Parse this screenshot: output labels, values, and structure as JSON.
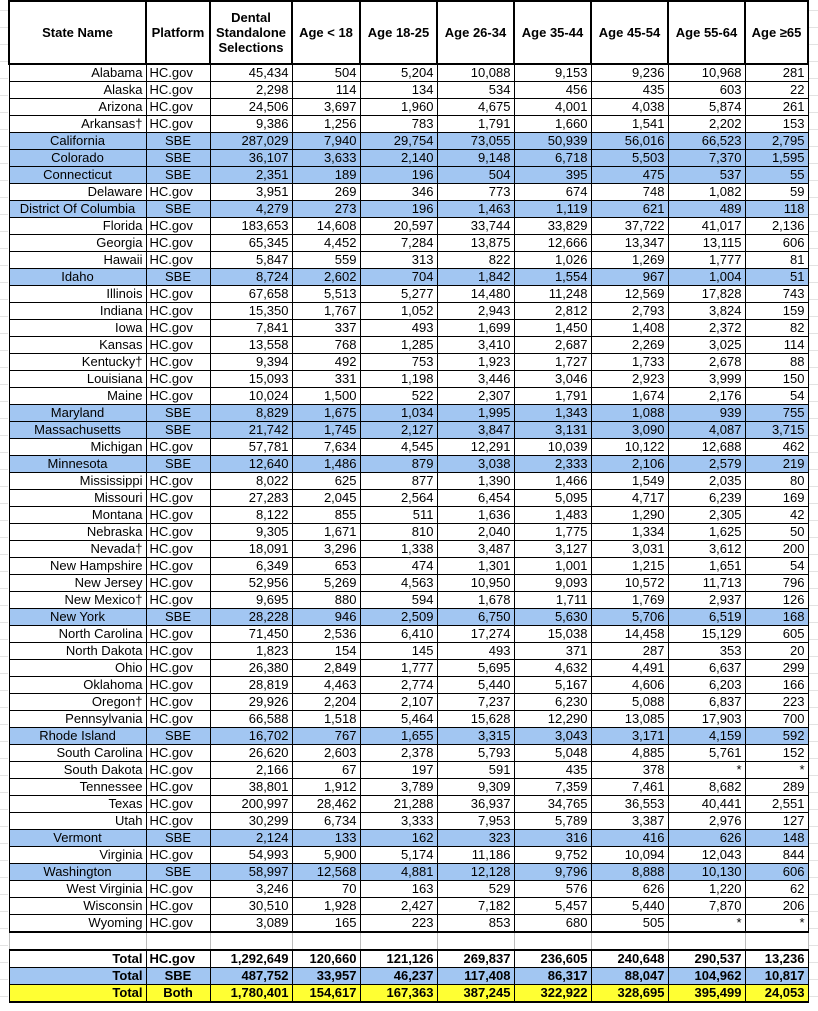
{
  "colors": {
    "sbe_row": "#a2c6f2",
    "total_both_row": "#ffff33"
  },
  "headers": [
    "State Name",
    "Platform",
    "Dental Standalone Selections",
    "Age < 18",
    "Age 18-25",
    "Age 26-34",
    "Age 35-44",
    "Age 45-54",
    "Age 55-64",
    "Age ≥65"
  ],
  "rows": [
    [
      "Alabama",
      "HC.gov",
      "45,434",
      "504",
      "5,204",
      "10,088",
      "9,153",
      "9,236",
      "10,968",
      "281"
    ],
    [
      "Alaska",
      "HC.gov",
      "2,298",
      "114",
      "134",
      "534",
      "456",
      "435",
      "603",
      "22"
    ],
    [
      "Arizona",
      "HC.gov",
      "24,506",
      "3,697",
      "1,960",
      "4,675",
      "4,001",
      "4,038",
      "5,874",
      "261"
    ],
    [
      "Arkansas†",
      "HC.gov",
      "9,386",
      "1,256",
      "783",
      "1,791",
      "1,660",
      "1,541",
      "2,202",
      "153"
    ],
    [
      "California",
      "SBE",
      "287,029",
      "7,940",
      "29,754",
      "73,055",
      "50,939",
      "56,016",
      "66,523",
      "2,795"
    ],
    [
      "Colorado",
      "SBE",
      "36,107",
      "3,633",
      "2,140",
      "9,148",
      "6,718",
      "5,503",
      "7,370",
      "1,595"
    ],
    [
      "Connecticut",
      "SBE",
      "2,351",
      "189",
      "196",
      "504",
      "395",
      "475",
      "537",
      "55"
    ],
    [
      "Delaware",
      "HC.gov",
      "3,951",
      "269",
      "346",
      "773",
      "674",
      "748",
      "1,082",
      "59"
    ],
    [
      "District Of Columbia",
      "SBE",
      "4,279",
      "273",
      "196",
      "1,463",
      "1,119",
      "621",
      "489",
      "118"
    ],
    [
      "Florida",
      "HC.gov",
      "183,653",
      "14,608",
      "20,597",
      "33,744",
      "33,829",
      "37,722",
      "41,017",
      "2,136"
    ],
    [
      "Georgia",
      "HC.gov",
      "65,345",
      "4,452",
      "7,284",
      "13,875",
      "12,666",
      "13,347",
      "13,115",
      "606"
    ],
    [
      "Hawaii",
      "HC.gov",
      "5,847",
      "559",
      "313",
      "822",
      "1,026",
      "1,269",
      "1,777",
      "81"
    ],
    [
      "Idaho",
      "SBE",
      "8,724",
      "2,602",
      "704",
      "1,842",
      "1,554",
      "967",
      "1,004",
      "51"
    ],
    [
      "Illinois",
      "HC.gov",
      "67,658",
      "5,513",
      "5,277",
      "14,480",
      "11,248",
      "12,569",
      "17,828",
      "743"
    ],
    [
      "Indiana",
      "HC.gov",
      "15,350",
      "1,767",
      "1,052",
      "2,943",
      "2,812",
      "2,793",
      "3,824",
      "159"
    ],
    [
      "Iowa",
      "HC.gov",
      "7,841",
      "337",
      "493",
      "1,699",
      "1,450",
      "1,408",
      "2,372",
      "82"
    ],
    [
      "Kansas",
      "HC.gov",
      "13,558",
      "768",
      "1,285",
      "3,410",
      "2,687",
      "2,269",
      "3,025",
      "114"
    ],
    [
      "Kentucky†",
      "HC.gov",
      "9,394",
      "492",
      "753",
      "1,923",
      "1,727",
      "1,733",
      "2,678",
      "88"
    ],
    [
      "Louisiana",
      "HC.gov",
      "15,093",
      "331",
      "1,198",
      "3,446",
      "3,046",
      "2,923",
      "3,999",
      "150"
    ],
    [
      "Maine",
      "HC.gov",
      "10,024",
      "1,500",
      "522",
      "2,307",
      "1,791",
      "1,674",
      "2,176",
      "54"
    ],
    [
      "Maryland",
      "SBE",
      "8,829",
      "1,675",
      "1,034",
      "1,995",
      "1,343",
      "1,088",
      "939",
      "755"
    ],
    [
      "Massachusetts",
      "SBE",
      "21,742",
      "1,745",
      "2,127",
      "3,847",
      "3,131",
      "3,090",
      "4,087",
      "3,715"
    ],
    [
      "Michigan",
      "HC.gov",
      "57,781",
      "7,634",
      "4,545",
      "12,291",
      "10,039",
      "10,122",
      "12,688",
      "462"
    ],
    [
      "Minnesota",
      "SBE",
      "12,640",
      "1,486",
      "879",
      "3,038",
      "2,333",
      "2,106",
      "2,579",
      "219"
    ],
    [
      "Mississippi",
      "HC.gov",
      "8,022",
      "625",
      "877",
      "1,390",
      "1,466",
      "1,549",
      "2,035",
      "80"
    ],
    [
      "Missouri",
      "HC.gov",
      "27,283",
      "2,045",
      "2,564",
      "6,454",
      "5,095",
      "4,717",
      "6,239",
      "169"
    ],
    [
      "Montana",
      "HC.gov",
      "8,122",
      "855",
      "511",
      "1,636",
      "1,483",
      "1,290",
      "2,305",
      "42"
    ],
    [
      "Nebraska",
      "HC.gov",
      "9,305",
      "1,671",
      "810",
      "2,040",
      "1,775",
      "1,334",
      "1,625",
      "50"
    ],
    [
      "Nevada†",
      "HC.gov",
      "18,091",
      "3,296",
      "1,338",
      "3,487",
      "3,127",
      "3,031",
      "3,612",
      "200"
    ],
    [
      "New Hampshire",
      "HC.gov",
      "6,349",
      "653",
      "474",
      "1,301",
      "1,001",
      "1,215",
      "1,651",
      "54"
    ],
    [
      "New Jersey",
      "HC.gov",
      "52,956",
      "5,269",
      "4,563",
      "10,950",
      "9,093",
      "10,572",
      "11,713",
      "796"
    ],
    [
      "New Mexico†",
      "HC.gov",
      "9,695",
      "880",
      "594",
      "1,678",
      "1,711",
      "1,769",
      "2,937",
      "126"
    ],
    [
      "New York",
      "SBE",
      "28,228",
      "946",
      "2,509",
      "6,750",
      "5,630",
      "5,706",
      "6,519",
      "168"
    ],
    [
      "North Carolina",
      "HC.gov",
      "71,450",
      "2,536",
      "6,410",
      "17,274",
      "15,038",
      "14,458",
      "15,129",
      "605"
    ],
    [
      "North Dakota",
      "HC.gov",
      "1,823",
      "154",
      "145",
      "493",
      "371",
      "287",
      "353",
      "20"
    ],
    [
      "Ohio",
      "HC.gov",
      "26,380",
      "2,849",
      "1,777",
      "5,695",
      "4,632",
      "4,491",
      "6,637",
      "299"
    ],
    [
      "Oklahoma",
      "HC.gov",
      "28,819",
      "4,463",
      "2,774",
      "5,440",
      "5,167",
      "4,606",
      "6,203",
      "166"
    ],
    [
      "Oregon†",
      "HC.gov",
      "29,926",
      "2,204",
      "2,107",
      "7,237",
      "6,230",
      "5,088",
      "6,837",
      "223"
    ],
    [
      "Pennsylvania",
      "HC.gov",
      "66,588",
      "1,518",
      "5,464",
      "15,628",
      "12,290",
      "13,085",
      "17,903",
      "700"
    ],
    [
      "Rhode Island",
      "SBE",
      "16,702",
      "767",
      "1,655",
      "3,315",
      "3,043",
      "3,171",
      "4,159",
      "592"
    ],
    [
      "South Carolina",
      "HC.gov",
      "26,620",
      "2,603",
      "2,378",
      "5,793",
      "5,048",
      "4,885",
      "5,761",
      "152"
    ],
    [
      "South Dakota",
      "HC.gov",
      "2,166",
      "67",
      "197",
      "591",
      "435",
      "378",
      "*",
      "*"
    ],
    [
      "Tennessee",
      "HC.gov",
      "38,801",
      "1,912",
      "3,789",
      "9,309",
      "7,359",
      "7,461",
      "8,682",
      "289"
    ],
    [
      "Texas",
      "HC.gov",
      "200,997",
      "28,462",
      "21,288",
      "36,937",
      "34,765",
      "36,553",
      "40,441",
      "2,551"
    ],
    [
      "Utah",
      "HC.gov",
      "30,299",
      "6,734",
      "3,333",
      "7,953",
      "5,789",
      "3,387",
      "2,976",
      "127"
    ],
    [
      "Vermont",
      "SBE",
      "2,124",
      "133",
      "162",
      "323",
      "316",
      "416",
      "626",
      "148"
    ],
    [
      "Virginia",
      "HC.gov",
      "54,993",
      "5,900",
      "5,174",
      "11,186",
      "9,752",
      "10,094",
      "12,043",
      "844"
    ],
    [
      "Washington",
      "SBE",
      "58,997",
      "12,568",
      "4,881",
      "12,128",
      "9,796",
      "8,888",
      "10,130",
      "606"
    ],
    [
      "West Virginia",
      "HC.gov",
      "3,246",
      "70",
      "163",
      "529",
      "576",
      "626",
      "1,220",
      "62"
    ],
    [
      "Wisconsin",
      "HC.gov",
      "30,510",
      "1,928",
      "2,427",
      "7,182",
      "5,457",
      "5,440",
      "7,870",
      "206"
    ],
    [
      "Wyoming",
      "HC.gov",
      "3,089",
      "165",
      "223",
      "853",
      "680",
      "505",
      "*",
      "*"
    ]
  ],
  "totals": [
    [
      "Total",
      "HC.gov",
      "1,292,649",
      "120,660",
      "121,126",
      "269,837",
      "236,605",
      "240,648",
      "290,537",
      "13,236"
    ],
    [
      "Total",
      "SBE",
      "487,752",
      "33,957",
      "46,237",
      "117,408",
      "86,317",
      "88,047",
      "104,962",
      "10,817"
    ],
    [
      "Total",
      "Both",
      "1,780,401",
      "154,617",
      "167,363",
      "387,245",
      "322,922",
      "328,695",
      "395,499",
      "24,053"
    ]
  ]
}
